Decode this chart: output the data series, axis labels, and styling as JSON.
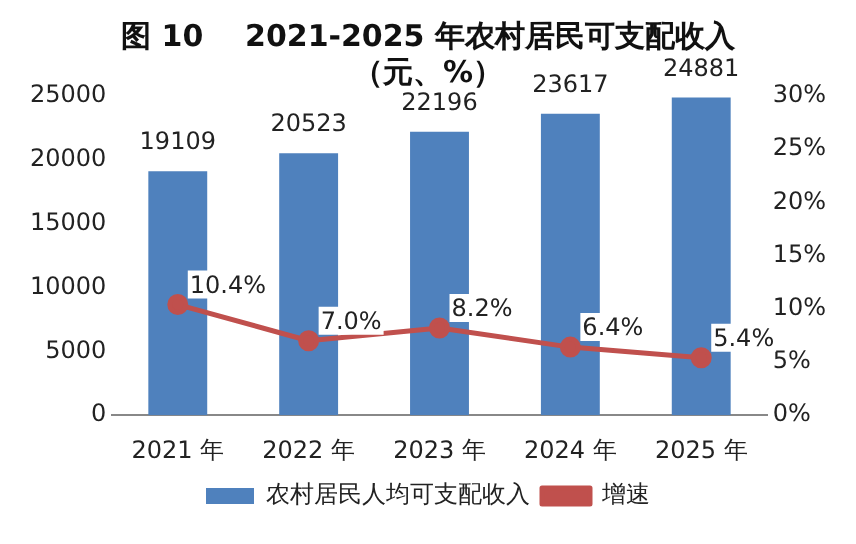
{
  "chart_data": {
    "type": "bar",
    "title": "图 10    2021-2025 年农村居民可支配收入",
    "subtitle": "（元、%）",
    "categories": [
      "2021 年",
      "2022 年",
      "2023 年",
      "2024 年",
      "2025 年"
    ],
    "series": [
      {
        "name": "农村居民人均可支配收入",
        "color": "#4f81bd",
        "values": [
          19109,
          20523,
          22196,
          23617,
          24881
        ],
        "value_labels": [
          "19109",
          "20523",
          "22196",
          "23617",
          "24881"
        ]
      },
      {
        "name": "增速",
        "type": "line",
        "axis": "y2",
        "color": "#c0504d",
        "marker": "circle",
        "values": [
          10.4,
          7.0,
          8.2,
          6.4,
          5.4
        ],
        "value_labels": [
          "10.4%",
          "7.0%",
          "8.2%",
          "6.4%",
          "5.4%"
        ]
      }
    ],
    "ylim": [
      0,
      25000
    ],
    "yticks": [
      0,
      5000,
      10000,
      15000,
      20000,
      25000
    ],
    "y2lim": [
      0,
      30
    ],
    "y2ticks": [
      {
        "value": 0,
        "label": "0%"
      },
      {
        "value": 5,
        "label": "5%"
      },
      {
        "value": 10,
        "label": "10%"
      },
      {
        "value": 15,
        "label": "15%"
      },
      {
        "value": 20,
        "label": "20%"
      },
      {
        "value": 25,
        "label": "25%"
      },
      {
        "value": 30,
        "label": "30%"
      }
    ],
    "grid": false,
    "legend": "bottom"
  }
}
